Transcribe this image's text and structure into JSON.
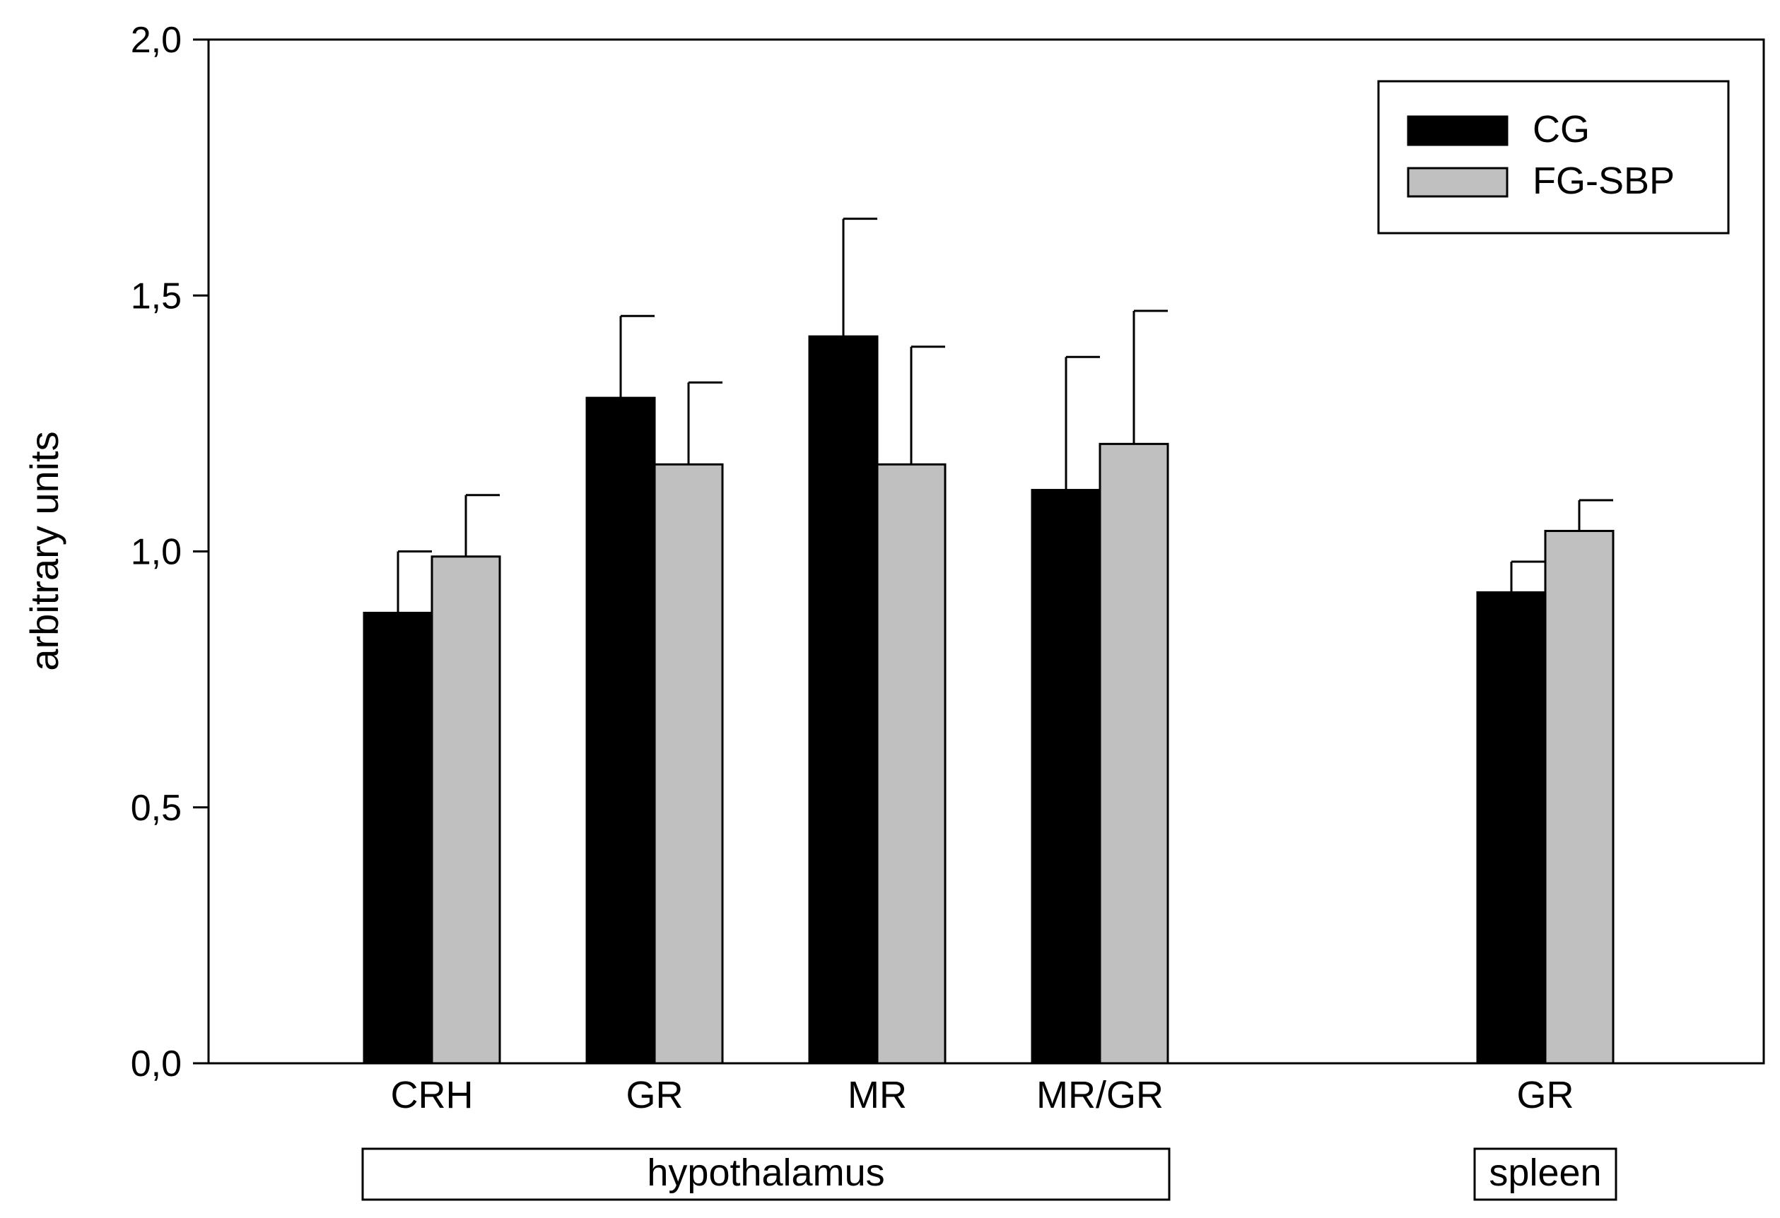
{
  "chart_data": {
    "type": "bar",
    "title": "",
    "xlabel": "",
    "ylabel": "arbitrary units",
    "ylim": [
      0,
      2.0
    ],
    "yticks": [
      "0,0",
      "0,5",
      "1,0",
      "1,5",
      "2,0"
    ],
    "ytick_values": [
      0,
      0.5,
      1.0,
      1.5,
      2.0
    ],
    "grid": false,
    "legend_position": "top-right",
    "categories": [
      {
        "label": "CRH",
        "slot": 1
      },
      {
        "label": "GR",
        "slot": 2
      },
      {
        "label": "MR",
        "slot": 3
      },
      {
        "label": "MR/GR",
        "slot": 4
      },
      {
        "label": "GR",
        "slot": 6
      }
    ],
    "series": [
      {
        "name": "CG",
        "color": "#000000",
        "values": [
          0.88,
          1.3,
          1.42,
          1.12,
          0.92
        ],
        "errors": [
          0.12,
          0.16,
          0.23,
          0.26,
          0.06
        ]
      },
      {
        "name": "FG-SBP",
        "color": "#c0c0c0",
        "values": [
          0.99,
          1.17,
          1.17,
          1.21,
          1.04
        ],
        "errors": [
          0.12,
          0.16,
          0.23,
          0.26,
          0.06
        ]
      }
    ],
    "groups": [
      {
        "label": "hypothalamus",
        "from_slot": 1,
        "to_slot": 4
      },
      {
        "label": "spleen",
        "from_slot": 6,
        "to_slot": 6
      }
    ]
  }
}
